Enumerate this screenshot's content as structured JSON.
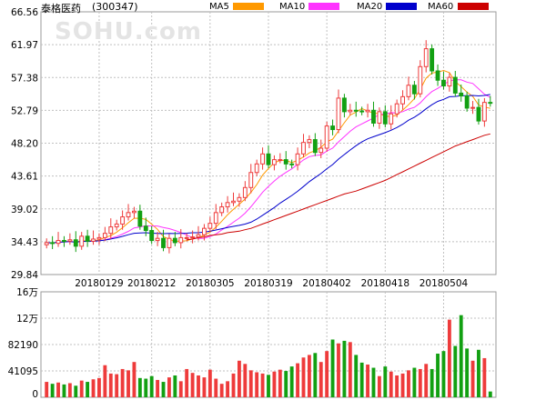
{
  "header": {
    "stock_name": "泰格医药",
    "stock_code": "(300347)"
  },
  "watermark": "SOHU.com",
  "legend": [
    {
      "label": "MA5",
      "color": "#ff9900"
    },
    {
      "label": "MA10",
      "color": "#ff33ff"
    },
    {
      "label": "MA20",
      "color": "#0000cc"
    },
    {
      "label": "MA60",
      "color": "#cc0000"
    }
  ],
  "colors": {
    "up": "#ee3b3b",
    "down": "#12a012",
    "grid": "#c0c0c0",
    "axis": "#999999"
  },
  "chart_data": [
    {
      "type": "candlestick",
      "title": "泰格医药(300347)",
      "y_ticks": [
        "66.56",
        "61.97",
        "57.38",
        "52.79",
        "48.20",
        "43.61",
        "39.02",
        "34.43",
        "29.84"
      ],
      "ylim": [
        29.84,
        66.56
      ],
      "x_ticks": [
        "20180129",
        "20180212",
        "20180305",
        "20180319",
        "20180402",
        "20180418",
        "20180504"
      ],
      "x_tick_index": [
        9,
        18,
        28,
        38,
        48,
        58,
        68
      ],
      "close": [
        34.3,
        34.2,
        34.6,
        34.5,
        34.7,
        33.8,
        35.2,
        34.5,
        34.8,
        35.0,
        35.6,
        36.5,
        36.9,
        37.9,
        38.5,
        38.7,
        36.6,
        36.0,
        34.6,
        34.9,
        33.6,
        34.9,
        34.3,
        35.0,
        35.0,
        35.1,
        35.4,
        36.3,
        37.0,
        38.5,
        39.3,
        39.9,
        40.1,
        40.6,
        42.0,
        44.1,
        45.3,
        46.7,
        45.2,
        45.9,
        45.9,
        45.3,
        45.2,
        46.7,
        48.3,
        48.7,
        46.9,
        47.5,
        50.6,
        50.1,
        54.5,
        52.6,
        52.8,
        52.7,
        52.6,
        52.8,
        51.0,
        52.6,
        50.9,
        52.3,
        53.7,
        54.7,
        56.3,
        55.1,
        58.9,
        61.4,
        58.3,
        57.0,
        56.2,
        57.4,
        55.2,
        54.8,
        53.1,
        53.2,
        51.3,
        53.9,
        53.8
      ],
      "ma60": [
        34.7,
        34.8,
        35.0,
        35.1,
        35.3,
        35.4,
        35.5,
        35.7,
        35.8,
        35.9,
        36.1,
        36.3,
        36.6,
        36.9,
        37.2,
        37.5,
        37.8,
        38.1,
        38.4,
        38.7,
        39.0,
        39.3,
        39.6,
        39.9,
        40.2,
        40.5,
        40.8,
        41.1,
        41.3,
        41.5,
        41.8,
        42.1,
        42.4,
        42.7,
        43.0,
        43.4,
        43.8,
        44.2,
        44.6,
        45.0,
        45.4,
        45.8,
        46.2,
        46.6,
        47.0,
        47.4,
        47.8,
        48.1,
        48.4,
        48.7,
        49.0,
        49.3,
        49.5
      ],
      "ma60_start_index": 24,
      "volume_axis": {
        "ticks": [
          "16万",
          "12万",
          "82190",
          "41095",
          "0"
        ],
        "ylim": [
          0,
          164380
        ]
      },
      "volume": [
        24000,
        21000,
        23000,
        20000,
        22000,
        18000,
        26000,
        24000,
        28000,
        30000,
        50000,
        37000,
        36000,
        44000,
        42000,
        55000,
        30000,
        29000,
        33000,
        27000,
        24000,
        31000,
        34000,
        25000,
        44000,
        38000,
        34000,
        31000,
        43000,
        29000,
        21000,
        25000,
        37000,
        57000,
        52000,
        42000,
        39000,
        37000,
        35000,
        40000,
        43000,
        41000,
        48000,
        53000,
        62000,
        66000,
        69000,
        55000,
        72000,
        90000,
        84000,
        88000,
        86000,
        66000,
        54000,
        51000,
        46000,
        33000,
        48000,
        40000,
        34000,
        37000,
        42000,
        46000,
        44000,
        52000,
        44000,
        68000,
        72000,
        121000,
        80000,
        128000,
        76000,
        57000,
        74000,
        61000,
        9000
      ]
    }
  ]
}
